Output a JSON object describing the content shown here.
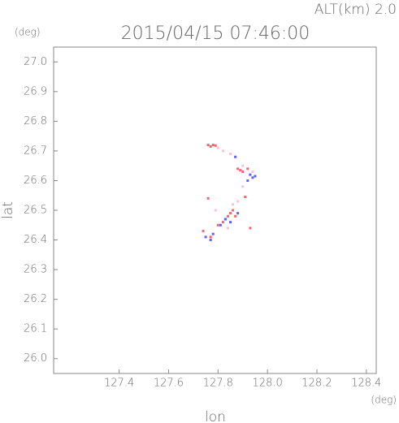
{
  "chart_data": {
    "type": "scatter",
    "title": "2015/04/15 07:46:00",
    "annotation": "ALT(km)  2.0",
    "y_unit": "(deg)",
    "x_unit": "(deg)",
    "x_label": "lon",
    "y_label": "lat",
    "xlim": [
      127.135,
      128.44
    ],
    "ylim": [
      25.95,
      27.05
    ],
    "xticks": [
      127.4,
      127.6,
      127.8,
      {
        "value": 128.0,
        "label": "128.0"
      },
      128.2,
      128.4
    ],
    "yticks": [
      {
        "value": 26.0,
        "label": "26.0"
      },
      26.1,
      26.2,
      26.3,
      26.4,
      26.5,
      26.6,
      26.7,
      26.8,
      26.9,
      {
        "value": 27.0,
        "label": "27.0"
      }
    ],
    "series": [
      {
        "color": "#ff6070",
        "x": [
          127.76,
          127.77,
          127.78,
          127.79,
          127.88,
          127.89,
          127.9,
          127.92,
          127.76,
          127.8,
          127.82,
          127.83,
          127.84,
          127.85,
          127.86,
          127.74,
          127.77,
          127.93,
          127.91,
          127.87
        ],
        "y": [
          26.72,
          26.715,
          26.72,
          26.718,
          26.64,
          26.635,
          26.63,
          26.64,
          26.54,
          26.45,
          26.46,
          26.47,
          26.48,
          26.49,
          26.5,
          26.43,
          26.41,
          26.44,
          26.545,
          26.48
        ]
      },
      {
        "color": "#6060ff",
        "x": [
          127.93,
          127.94,
          127.95,
          127.92,
          127.81,
          127.83,
          127.85,
          127.77,
          127.78,
          127.75,
          127.88,
          127.87
        ],
        "y": [
          26.62,
          26.61,
          26.615,
          26.6,
          26.45,
          26.47,
          26.46,
          26.4,
          26.42,
          26.41,
          26.49,
          26.68
        ]
      },
      {
        "color": "#ffc0d0",
        "x": [
          127.8,
          127.82,
          127.85,
          127.9,
          127.94,
          127.86,
          127.79,
          127.88,
          127.9,
          127.84
        ],
        "y": [
          26.71,
          26.7,
          26.69,
          26.65,
          26.63,
          26.52,
          26.5,
          26.53,
          26.58,
          26.44
        ]
      }
    ]
  }
}
